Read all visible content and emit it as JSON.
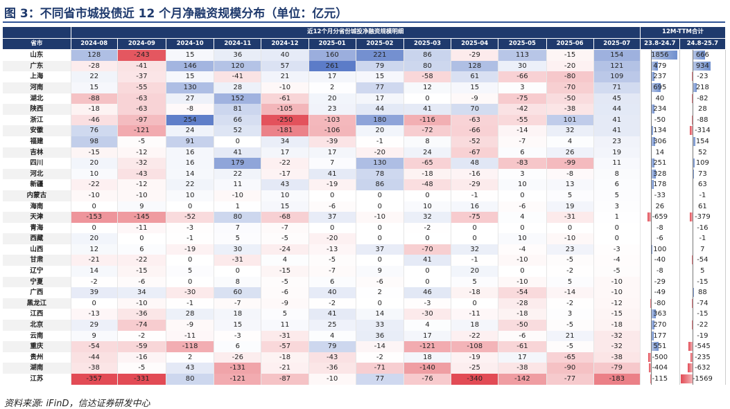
{
  "title": "图 3：不同省市城投债近 12 个月净融资规模分布（单位：亿元）",
  "header": {
    "group_main": "近12个月分省份城投净融资规模明细",
    "group_ttm": "12M-TTM合计",
    "province": "省市",
    "months": [
      "2024-08",
      "2024-09",
      "2024-10",
      "2024-11",
      "2024-12",
      "2025-01",
      "2025-02",
      "2025-03",
      "2025-04",
      "2025-05",
      "2025-06",
      "2025-07"
    ],
    "ttm": [
      "23.8-24.7",
      "24.8-25.7"
    ]
  },
  "rows": [
    {
      "name": "山东",
      "v": [
        128,
        -243,
        15,
        36,
        40,
        160,
        221,
        86,
        -29,
        113,
        -15,
        154
      ],
      "t": [
        1856,
        666
      ]
    },
    {
      "name": "广东",
      "v": [
        -28,
        -41,
        146,
        120,
        57,
        261,
        79,
        80,
        128,
        30,
        -20,
        121
      ],
      "t": [
        479,
        934
      ]
    },
    {
      "name": "上海",
      "v": [
        22,
        -37,
        15,
        -41,
        21,
        17,
        15,
        -58,
        61,
        -66,
        -80,
        109
      ],
      "t": [
        237,
        -23
      ]
    },
    {
      "name": "河南",
      "v": [
        15,
        -55,
        130,
        28,
        -10,
        2,
        77,
        12,
        15,
        3,
        -70,
        71
      ],
      "t": [
        695,
        218
      ]
    },
    {
      "name": "湖北",
      "v": [
        -88,
        -63,
        27,
        152,
        -61,
        20,
        17,
        0,
        -9,
        -75,
        -50,
        45
      ],
      "t": [
        40,
        -82
      ]
    },
    {
      "name": "陕西",
      "v": [
        -18,
        -63,
        -8,
        81,
        -105,
        23,
        44,
        41,
        70,
        -42,
        -38,
        44
      ],
      "t": [
        234,
        28
      ]
    },
    {
      "name": "浙江",
      "v": [
        -46,
        -97,
        254,
        66,
        -250,
        -103,
        180,
        -116,
        -63,
        -55,
        101,
        41
      ],
      "t": [
        -50,
        -88
      ]
    },
    {
      "name": "安徽",
      "v": [
        76,
        -121,
        24,
        52,
        -181,
        -106,
        20,
        -72,
        -66,
        -14,
        32,
        41
      ],
      "t": [
        134,
        -314
      ]
    },
    {
      "name": "福建",
      "v": [
        98,
        -5,
        91,
        0,
        34,
        -39,
        -1,
        8,
        -52,
        -7,
        4,
        23
      ],
      "t": [
        306,
        154
      ]
    },
    {
      "name": "吉林",
      "v": [
        -15,
        -12,
        16,
        41,
        17,
        17,
        -20,
        24,
        -67,
        6,
        26,
        19
      ],
      "t": [
        14,
        52
      ]
    },
    {
      "name": "四川",
      "v": [
        20,
        -32,
        16,
        179,
        -22,
        7,
        130,
        -65,
        48,
        -83,
        -99,
        11
      ],
      "t": [
        251,
        109
      ]
    },
    {
      "name": "河北",
      "v": [
        10,
        -43,
        14,
        22,
        -17,
        41,
        78,
        -18,
        -16,
        3,
        -8,
        8
      ],
      "t": [
        328,
        73
      ]
    },
    {
      "name": "新疆",
      "v": [
        -22,
        -12,
        22,
        11,
        43,
        -19,
        86,
        -48,
        -29,
        10,
        13,
        6
      ],
      "t": [
        178,
        63
      ]
    },
    {
      "name": "内蒙古",
      "v": [
        -10,
        -10,
        10,
        -10,
        10,
        0,
        0,
        0,
        -1,
        0,
        5,
        5
      ],
      "t": [
        -33,
        -1
      ]
    },
    {
      "name": "海南",
      "v": [
        0,
        9,
        0,
        1,
        15,
        -6,
        0,
        10,
        16,
        -6,
        19,
        3
      ],
      "t": [
        26,
        61
      ]
    },
    {
      "name": "天津",
      "v": [
        -153,
        -145,
        -52,
        80,
        -68,
        37,
        -10,
        32,
        -75,
        4,
        -31,
        1
      ],
      "t": [
        -659,
        -379
      ]
    },
    {
      "name": "青海",
      "v": [
        0,
        -11,
        -3,
        7,
        -7,
        0,
        0,
        -2,
        0,
        0,
        0,
        0
      ],
      "t": [
        -8,
        -16
      ]
    },
    {
      "name": "西藏",
      "v": [
        20,
        0,
        -1,
        5,
        -5,
        -20,
        0,
        0,
        0,
        10,
        -10,
        0
      ],
      "t": [
        -6,
        -1
      ]
    },
    {
      "name": "山西",
      "v": [
        12,
        6,
        -19,
        30,
        -24,
        -13,
        37,
        -70,
        32,
        -4,
        23,
        -3
      ],
      "t": [
        100,
        7
      ]
    },
    {
      "name": "甘肃",
      "v": [
        -21,
        -22,
        0,
        -31,
        4,
        -5,
        0,
        41,
        -1,
        -10,
        -5,
        -4
      ],
      "t": [
        -40,
        -54
      ]
    },
    {
      "name": "辽宁",
      "v": [
        14,
        -15,
        5,
        0,
        -15,
        -7,
        9,
        0,
        20,
        0,
        -2,
        -5
      ],
      "t": [
        -8,
        5
      ]
    },
    {
      "name": "宁夏",
      "v": [
        -2,
        -6,
        0,
        8,
        -5,
        6,
        -6,
        0,
        5,
        -10,
        5,
        -10
      ],
      "t": [
        -29,
        -15
      ]
    },
    {
      "name": "广西",
      "v": [
        39,
        34,
        -30,
        60,
        -6,
        40,
        2,
        46,
        -18,
        -54,
        -14,
        -10
      ],
      "t": [
        -49,
        88
      ]
    },
    {
      "name": "黑龙江",
      "v": [
        0,
        -10,
        -1,
        -7,
        -9,
        -2,
        0,
        -3,
        0,
        -28,
        -2,
        -12
      ],
      "t": [
        -80,
        -74
      ]
    },
    {
      "name": "江西",
      "v": [
        -13,
        -36,
        28,
        18,
        5,
        41,
        14,
        -30,
        -11,
        -18,
        3,
        -15
      ],
      "t": [
        363,
        -15
      ]
    },
    {
      "name": "北京",
      "v": [
        29,
        -74,
        -9,
        15,
        11,
        25,
        33,
        4,
        18,
        -50,
        -5,
        -18
      ],
      "t": [
        270,
        -22
      ]
    },
    {
      "name": "云南",
      "v": [
        9,
        -2,
        -11,
        -3,
        -31,
        4,
        36,
        17,
        -22,
        -6,
        21,
        -32
      ],
      "t": [
        177,
        -19
      ]
    },
    {
      "name": "重庆",
      "v": [
        -54,
        -59,
        -118,
        6,
        -57,
        79,
        -14,
        -121,
        -108,
        -61,
        -5,
        -32
      ],
      "t": [
        551,
        -545
      ]
    },
    {
      "name": "贵州",
      "v": [
        -44,
        -16,
        2,
        -26,
        -18,
        -43,
        -2,
        18,
        -19,
        17,
        -65,
        -38
      ],
      "t": [
        -500,
        -235
      ]
    },
    {
      "name": "湖南",
      "v": [
        -38,
        -5,
        43,
        -131,
        -21,
        -36,
        -71,
        -140,
        -25,
        -38,
        -90,
        -79
      ],
      "t": [
        -404,
        -632
      ]
    },
    {
      "name": "江苏",
      "v": [
        -357,
        -331,
        80,
        -121,
        -87,
        -10,
        77,
        -76,
        -340,
        -142,
        -77,
        -183
      ],
      "t": [
        -115,
        -1569
      ]
    }
  ],
  "source": "资料来源: iFinD，信达证券研发中心",
  "colors": {
    "header": "#1f3a6d",
    "pos": "#4a6fbf",
    "neg": "#e03c47"
  }
}
